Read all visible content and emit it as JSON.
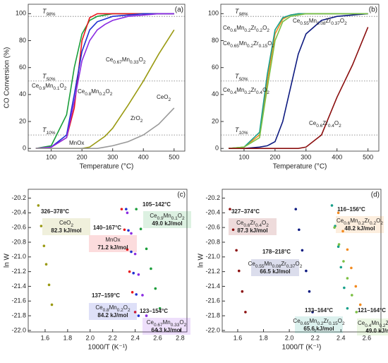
{
  "chart_data": [
    {
      "type": "line",
      "panel": "(a)",
      "x_label": "Temperature (°C)",
      "y_label": "CO Conversion (%)",
      "xlim": [
        25,
        535
      ],
      "ylim": [
        -2,
        107
      ],
      "xticks": [
        100,
        200,
        300,
        400,
        500
      ],
      "yticks": [
        0,
        20,
        40,
        60,
        80,
        100
      ],
      "reference_lines": [
        {
          "label": "T98%",
          "value": 98
        },
        {
          "label": "T50%",
          "value": 50
        },
        {
          "label": "T10%",
          "value": 10
        }
      ],
      "x": [
        50,
        100,
        150,
        175,
        200,
        225,
        250,
        275,
        300,
        350,
        400,
        450,
        500
      ],
      "series": [
        {
          "name": "Ce0.9Mn0.1O2",
          "color": "#1a9e3a",
          "values": [
            0,
            2,
            25,
            60,
            85,
            95,
            98,
            99,
            100,
            100,
            100,
            100,
            100
          ]
        },
        {
          "name": "MnOx",
          "color": "#e8161b",
          "values": [
            0,
            1,
            8,
            30,
            80,
            97,
            100,
            100,
            100,
            100,
            100,
            100,
            100
          ]
        },
        {
          "name": "Ce0.8Mn0.2O2",
          "color": "#1f2fd1",
          "values": [
            0,
            1,
            10,
            40,
            72,
            88,
            94,
            96,
            98,
            99,
            100,
            100,
            100
          ]
        },
        {
          "name": "Ce0.67Mn0.33O2",
          "color": "#8a2be2",
          "values": [
            0,
            1,
            8,
            35,
            65,
            80,
            88,
            92,
            95,
            98,
            99,
            100,
            100
          ]
        },
        {
          "name": "CeO2",
          "color": "#9a9a12",
          "values": [
            0,
            0,
            0,
            0,
            0,
            1,
            5,
            9,
            15,
            32,
            50,
            70,
            88
          ]
        },
        {
          "name": "ZrO2",
          "color": "#999999",
          "values": [
            0,
            0,
            0,
            0,
            0,
            0,
            0,
            1,
            2,
            5,
            10,
            18,
            30
          ]
        }
      ]
    },
    {
      "type": "line",
      "panel": "(b)",
      "x_label": "Temperature (°C)",
      "xlim": [
        25,
        535
      ],
      "ylim": [
        -2,
        107
      ],
      "xticks": [
        100,
        200,
        300,
        400,
        500
      ],
      "yticks": [
        0,
        20,
        40,
        60,
        80,
        100
      ],
      "reference_lines": [
        {
          "label": "T98%",
          "value": 98
        },
        {
          "label": "T50%",
          "value": 50
        },
        {
          "label": "T10%",
          "value": 10
        }
      ],
      "x": [
        50,
        100,
        150,
        175,
        200,
        225,
        250,
        275,
        300,
        350,
        400,
        450,
        500
      ],
      "series": [
        {
          "name": "Ce0.6Mn0.2Zr0.2O2",
          "color": "#f28a1f",
          "values": [
            0,
            1,
            10,
            50,
            85,
            96,
            99,
            100,
            100,
            100,
            100,
            100,
            100
          ]
        },
        {
          "name": "Ce0.65Mn0.2Zr0.15O2",
          "color": "#17a08a",
          "values": [
            0,
            1,
            12,
            55,
            88,
            97,
            99,
            100,
            100,
            100,
            100,
            100,
            100
          ]
        },
        {
          "name": "Ce0.55Mn0.08Zr0.37O2",
          "color": "#0d1a80",
          "values": [
            0,
            0,
            1,
            2,
            5,
            20,
            45,
            70,
            85,
            95,
            98,
            99,
            100
          ]
        },
        {
          "name": "Ce0.4Mn0.2Zr0.4O2",
          "color": "#7bc043",
          "values": [
            0,
            1,
            8,
            45,
            80,
            94,
            98,
            99,
            100,
            100,
            100,
            100,
            100
          ]
        },
        {
          "name": "Ce0.6Zr0.4O2",
          "color": "#8b0f0f",
          "values": [
            0,
            0,
            0,
            0,
            0,
            0,
            0,
            0,
            1,
            10,
            38,
            62,
            90
          ]
        }
      ]
    },
    {
      "type": "scatter",
      "panel": "(c)",
      "x_label": "1000/T (K⁻¹)",
      "y_label": "ln W",
      "xlim": [
        1.45,
        2.86
      ],
      "ylim": [
        -22.02,
        -20.08
      ],
      "xticks": [
        1.6,
        1.8,
        {
          "value": 2,
          "label": "2.0"
        },
        2.2,
        2.4,
        2.6,
        2.8
      ],
      "yticks": [
        -20.2,
        -20.4,
        -20.6,
        -20.8,
        {
          "value": -21,
          "label": "-21.0"
        },
        -21.2,
        -21.4,
        -21.6,
        -21.8,
        {
          "value": -22,
          "label": "-22.0"
        }
      ],
      "series": [
        {
          "name": "CeO2",
          "color": "#9a9a12",
          "range": "326–378°C",
          "energy": "82.3 kJ/mol",
          "x": [
            1.54,
            1.565,
            1.59,
            1.61,
            1.635,
            1.66
          ],
          "values": [
            -20.3,
            -20.58,
            -20.85,
            -21.1,
            -21.38,
            -21.65
          ]
        },
        {
          "name": "MnOx",
          "color": "#e8161b",
          "range": "140–167°C",
          "energy": "71.2 kJ/mol",
          "x": [
            2.28,
            2.305,
            2.33,
            2.35,
            2.375,
            2.4
          ],
          "values": [
            -20.35,
            -20.63,
            -20.9,
            -21.2,
            -21.48,
            -21.75
          ]
        },
        {
          "name": "Ce0.9Mn0.1O2",
          "color": "#1a9e3a",
          "range": "105–142°C",
          "energy": "49.0 kJ/mol",
          "x": [
            2.41,
            2.45,
            2.5,
            2.54,
            2.58,
            2.62
          ],
          "values": [
            -20.35,
            -20.62,
            -20.89,
            -21.16,
            -21.43,
            -21.7
          ]
        },
        {
          "name": "Ce0.8Mn0.2O2",
          "color": "#1f2fd1",
          "range": "137–159°C",
          "energy": "84.2 kJ/mol",
          "x": [
            2.32,
            2.34,
            2.365,
            2.385,
            2.41,
            2.43
          ],
          "values": [
            -20.35,
            -20.64,
            -20.93,
            -21.22,
            -21.51,
            -21.8
          ]
        },
        {
          "name": "Ce0.67Mn0.33O2",
          "color": "#8a2be2",
          "range": "123–154°C",
          "energy": "64.3 kJ/mol",
          "x": [
            2.33,
            2.365,
            2.4,
            2.43,
            2.465,
            2.5
          ],
          "values": [
            -20.4,
            -20.68,
            -20.96,
            -21.24,
            -21.52,
            -21.8
          ]
        }
      ]
    },
    {
      "type": "scatter",
      "panel": "(d)",
      "x_label": "1000/T (K⁻¹)",
      "y_label": "ln W",
      "xlim": [
        1.48,
        2.71
      ],
      "ylim": [
        -22.02,
        -20.08
      ],
      "xticks": [
        1.6,
        1.8,
        {
          "value": 2,
          "label": "2.0"
        },
        2.2,
        2.4,
        2.6
      ],
      "yticks": [
        -20.2,
        -20.4,
        -20.6,
        -20.8,
        {
          "value": -21,
          "label": "-21.0"
        },
        -21.2,
        -21.4,
        -21.6,
        -21.8,
        {
          "value": -22,
          "label": "-22.0"
        }
      ],
      "series": [
        {
          "name": "Ce0.6Zr0.4O2",
          "color": "#8b0f0f",
          "range": "327–374°C",
          "energy": "87.3 kJ/mol",
          "x": [
            1.54,
            1.565,
            1.59,
            1.61,
            1.635,
            1.66
          ],
          "values": [
            -20.35,
            -20.63,
            -20.91,
            -21.19,
            -21.47,
            -21.75
          ]
        },
        {
          "name": "Ce0.55Mn0.08Zr0.37O2",
          "color": "#0d1a80",
          "range": "178–218°C",
          "energy": "66.5 kJ/mol",
          "x": [
            2.05,
            2.075,
            2.1,
            2.13,
            2.155,
            2.18
          ],
          "values": [
            -20.35,
            -20.63,
            -20.91,
            -21.19,
            -21.47,
            -21.75
          ]
        },
        {
          "name": "Ce0.65Mn0.2Zr0.15O2",
          "color": "#17a08a",
          "range": "133–164°C",
          "energy": "65.6 kJ/mol",
          "x": [
            2.33,
            2.355,
            2.38,
            2.4,
            2.425,
            2.45
          ],
          "values": [
            -20.3,
            -20.58,
            -20.86,
            -21.14,
            -21.42,
            -21.7
          ]
        },
        {
          "name": "Ce0.6Mn0.2Zr0.2O2",
          "color": "#f28a1f",
          "range": "116–156°C",
          "energy": "48.2 kJ/mol",
          "x": [
            2.38,
            2.415,
            2.45,
            2.48,
            2.515,
            2.55
          ],
          "values": [
            -20.4,
            -20.65,
            -20.9,
            -21.15,
            -21.4,
            -21.65
          ]
        },
        {
          "name": "Ce0.4Mn0.2Zr0.4O2",
          "color": "#7bc043",
          "range": "121–164°C",
          "energy": "49.0 kJ/mol",
          "x": [
            2.35,
            2.385,
            2.42,
            2.45,
            2.485,
            2.52
          ],
          "values": [
            -20.6,
            -20.83,
            -21.06,
            -21.29,
            -21.52,
            -21.75
          ]
        }
      ]
    }
  ]
}
